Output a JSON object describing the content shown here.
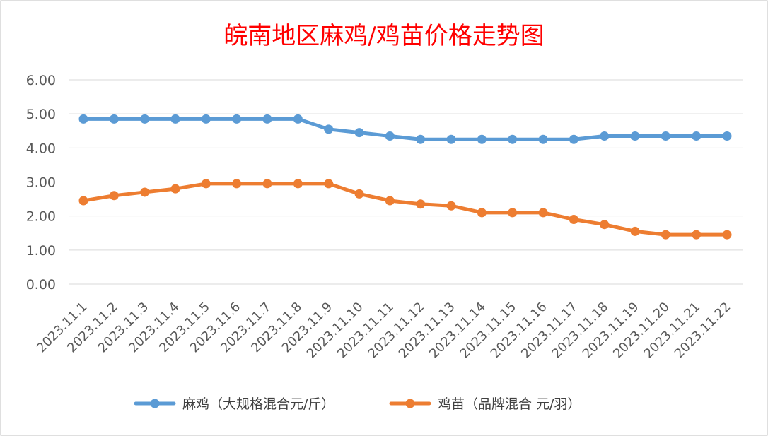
{
  "colors": {
    "title": "#ff0000",
    "series_mj": "#5b9bd5",
    "series_jm": "#ed7d31",
    "grid": "#d9d9d9",
    "frame": "#bfbfbf",
    "tick": "#595959"
  },
  "chart_data": {
    "type": "line",
    "title": "皖南地区麻鸡/鸡苗价格走势图",
    "xlabel": "",
    "ylabel": "",
    "ylim": [
      0,
      6
    ],
    "yticks": [
      "0.00",
      "1.00",
      "2.00",
      "3.00",
      "4.00",
      "5.00",
      "6.00"
    ],
    "grid": true,
    "legend_position": "bottom",
    "categories": [
      "2023.11.1",
      "2023.11.2",
      "2023.11.3",
      "2023.11.4",
      "2023.11.5",
      "2023.11.6",
      "2023.11.7",
      "2023.11.8",
      "2023.11.9",
      "2023.11.10",
      "2023.11.11",
      "2023.11.12",
      "2023.11.13",
      "2023.11.14",
      "2023.11.15",
      "2023.11.16",
      "2023.11.17",
      "2023.11.18",
      "2023.11.19",
      "2023.11.20",
      "2023.11.21",
      "2023.11.22"
    ],
    "series": [
      {
        "name": "麻鸡（大规格混合元/斤）",
        "color": "#5b9bd5",
        "values": [
          4.85,
          4.85,
          4.85,
          4.85,
          4.85,
          4.85,
          4.85,
          4.85,
          4.55,
          4.45,
          4.35,
          4.25,
          4.25,
          4.25,
          4.25,
          4.25,
          4.25,
          4.35,
          4.35,
          4.35,
          4.35,
          4.35
        ]
      },
      {
        "name": "鸡苗（品牌混合 元/羽）",
        "color": "#ed7d31",
        "values": [
          2.45,
          2.6,
          2.7,
          2.8,
          2.95,
          2.95,
          2.95,
          2.95,
          2.95,
          2.65,
          2.45,
          2.35,
          2.3,
          2.1,
          2.1,
          2.1,
          1.9,
          1.75,
          1.55,
          1.45,
          1.45,
          1.45
        ]
      }
    ]
  }
}
